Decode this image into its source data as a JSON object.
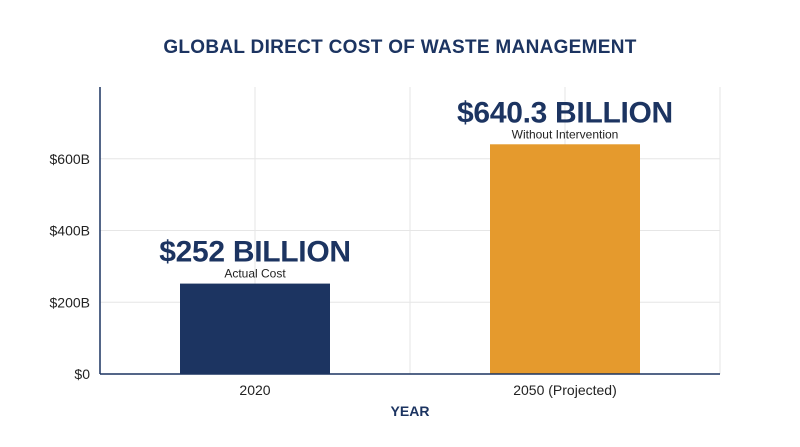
{
  "chart_data": {
    "type": "bar",
    "title": "GLOBAL DIRECT COST OF WASTE MANAGEMENT",
    "xlabel": "YEAR",
    "ylabel": "",
    "categories": [
      "2020",
      "2050 (Projected)"
    ],
    "values": [
      252,
      640.3
    ],
    "value_labels": [
      "$252 BILLION",
      "$640.3 BILLION"
    ],
    "value_sublabels": [
      "Actual Cost",
      "Without Intervention"
    ],
    "bar_colors": [
      "#1c3461",
      "#e59a2d"
    ],
    "ylim": [
      0,
      800
    ],
    "yticks": [
      0,
      200,
      400,
      600
    ],
    "ytick_labels": [
      "$0",
      "$200B",
      "$400B",
      "$600B"
    ],
    "grid": true,
    "title_color": "#1c3461",
    "grid_color": "#e6e6e6",
    "axis_color": "#1c3461"
  }
}
